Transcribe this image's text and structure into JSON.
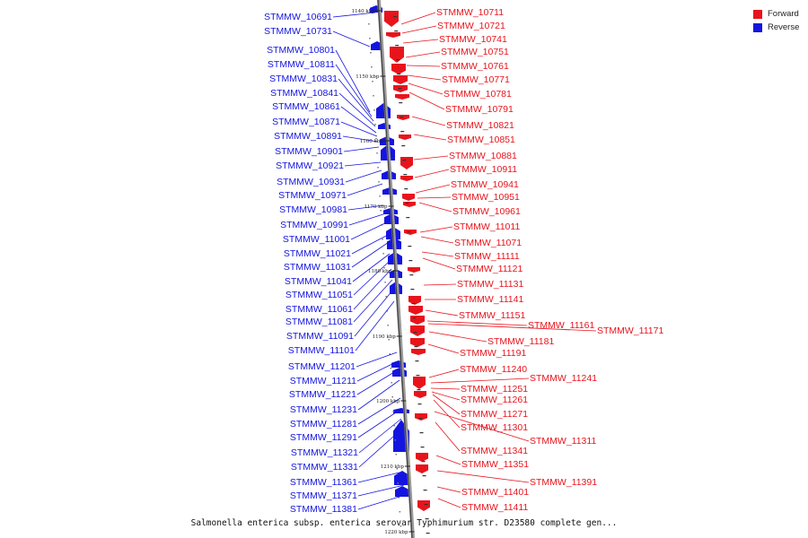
{
  "legend": [
    {
      "label": "Forward",
      "color": "#e8141c"
    },
    {
      "label": "Reverse",
      "color": "#1414e0"
    }
  ],
  "caption": "Salmonella enterica subsp. enterica serovar Typhimurium str. D23580 complete gen...",
  "scale_ticks": [
    "1140 kbp",
    "1150 kbp",
    "1160 kbp",
    "1170 kbp",
    "1180 kbp",
    "1190 kbp",
    "1200 kbp",
    "1210 kbp",
    "1220 kbp"
  ],
  "reverse_genes": [
    "STMMW_10691",
    "STMMW_10731",
    "STMMW_10801",
    "STMMW_10811",
    "STMMW_10831",
    "STMMW_10841",
    "STMMW_10861",
    "STMMW_10871",
    "STMMW_10891",
    "STMMW_10901",
    "STMMW_10921",
    "STMMW_10931",
    "STMMW_10971",
    "STMMW_10981",
    "STMMW_10991",
    "STMMW_11001",
    "STMMW_11021",
    "STMMW_11031",
    "STMMW_11041",
    "STMMW_11051",
    "STMMW_11061",
    "STMMW_11081",
    "STMMW_11091",
    "STMMW_11101",
    "STMMW_11201",
    "STMMW_11211",
    "STMMW_11221",
    "STMMW_11231",
    "STMMW_11281",
    "STMMW_11291",
    "STMMW_11321",
    "STMMW_11331",
    "STMMW_11361",
    "STMMW_11371",
    "STMMW_11381"
  ],
  "forward_genes": [
    "STMMW_10711",
    "STMMW_10721",
    "STMMW_10741",
    "STMMW_10751",
    "STMMW_10761",
    "STMMW_10771",
    "STMMW_10781",
    "STMMW_10791",
    "STMMW_10821",
    "STMMW_10851",
    "STMMW_10881",
    "STMMW_10911",
    "STMMW_10941",
    "STMMW_10951",
    "STMMW_10961",
    "STMMW_11011",
    "STMMW_11071",
    "STMMW_11111",
    "STMMW_11121",
    "STMMW_11131",
    "STMMW_11141",
    "STMMW_11151",
    "STMMW_11161",
    "STMMW_11171",
    "STMMW_11181",
    "STMMW_11191",
    "STMMW_11240",
    "STMMW_11241",
    "STMMW_11251",
    "STMMW_11261",
    "STMMW_11271",
    "STMMW_11301",
    "STMMW_11311",
    "STMMW_11341",
    "STMMW_11351",
    "STMMW_11391",
    "STMMW_11401",
    "STMMW_11411"
  ]
}
